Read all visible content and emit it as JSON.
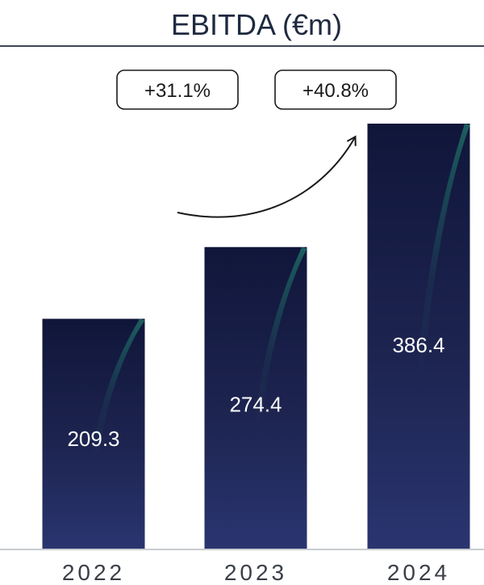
{
  "chart_data": {
    "type": "bar",
    "title": "EBITDA (€m)",
    "categories": [
      "2022",
      "2023",
      "2024"
    ],
    "values": [
      209.3,
      274.4,
      386.4
    ],
    "value_labels": [
      "209.3",
      "274.4",
      "386.4"
    ],
    "growth_badges": [
      "+31.1%",
      "+40.8%"
    ],
    "ylim": [
      0,
      540
    ],
    "grid": false,
    "legend": "none"
  },
  "colors": {
    "title_text": "#1f2a40",
    "title_rule": "#3c4656",
    "bar_top": "#10163a",
    "bar_mid": "#1d2450",
    "bar_bottom": "#2a3570",
    "bar_streak": "#1f6b66",
    "axis_line": "#c9cbd0",
    "arrow": "#1a1a1a"
  }
}
